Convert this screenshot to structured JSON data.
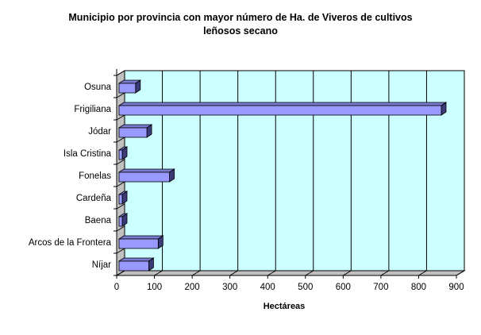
{
  "chart_data": {
    "type": "bar",
    "orientation": "horizontal",
    "title_lines": [
      "Municipio por provincia  con mayor número de Ha. de Viveros de cultivos",
      "leñosos secano"
    ],
    "xlabel": "Hectáreas",
    "ylabel": "",
    "categories": [
      "Osuna",
      "Frigiliana",
      "Jódar",
      "Isla Cristina",
      "Fonelas",
      "Cardeña",
      "Baena",
      "Arcos de la Frontera",
      "Níjar"
    ],
    "values": [
      50,
      860,
      80,
      10,
      140,
      10,
      10,
      110,
      85
    ],
    "xlim": [
      0,
      900
    ],
    "x_ticks": [
      0,
      100,
      200,
      300,
      400,
      500,
      600,
      700,
      800,
      900
    ],
    "grid": true,
    "legend": "none",
    "colors": {
      "bar_face": "#9999ff",
      "bar_top": "#7a7ad0",
      "bar_side": "#3b3b7a",
      "plot_background": "#ccffff",
      "floor": "#c0c0c0",
      "grid": "#000000"
    }
  }
}
